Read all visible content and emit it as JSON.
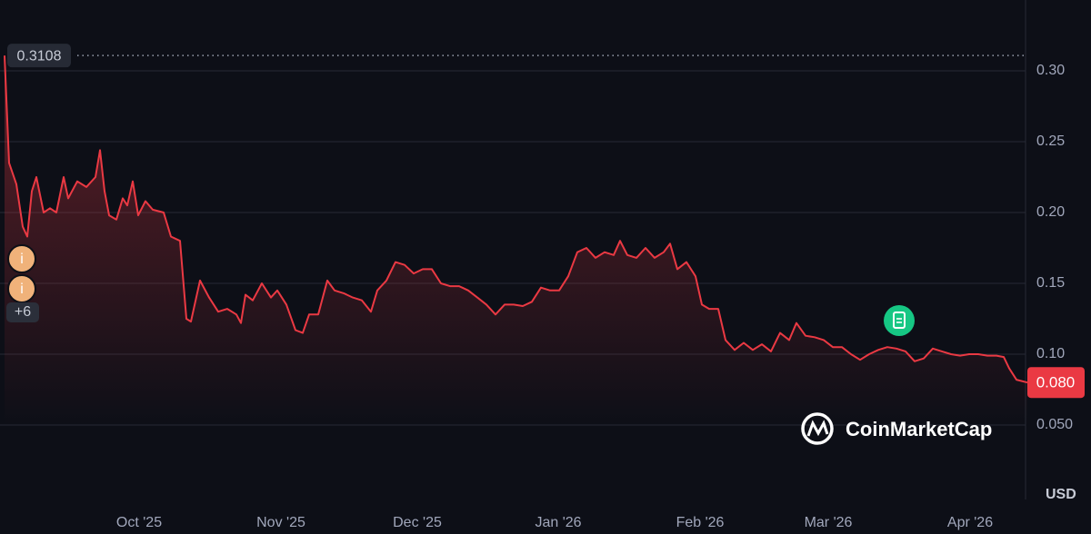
{
  "chart_data": {
    "type": "line",
    "color": "#ea3943",
    "x": [
      0,
      1,
      2.6,
      4,
      5,
      6,
      7,
      8.6,
      10,
      11.4,
      13,
      14,
      16,
      18,
      20,
      21,
      22,
      23,
      24.6,
      26,
      27,
      28.2,
      29.4,
      31,
      32.6,
      35,
      36.6,
      38.6,
      40,
      41,
      43,
      45,
      47,
      49,
      51,
      52,
      53,
      54.6,
      56.6,
      58.6,
      60,
      62,
      64,
      65.6,
      67,
      69,
      71,
      72.6,
      74.6,
      76.6,
      78.6,
      80.6,
      82,
      84,
      86,
      88,
      90,
      92,
      94,
      96,
      98,
      100,
      102,
      104,
      106,
      108,
      110,
      112,
      114,
      116,
      118,
      120,
      122,
      124,
      126,
      128,
      130,
      132,
      134,
      135.4,
      137,
      139,
      141,
      143,
      145,
      146.4,
      148,
      150,
      152,
      153.4,
      155,
      157,
      158.6,
      160.6,
      162.6,
      164.6,
      166.6,
      168.6,
      170.6,
      172.6,
      174.2,
      176.2,
      178.2,
      180.2,
      182.2,
      184.2,
      186.2,
      188.2,
      190.2,
      192.2,
      194.2,
      196.2,
      198.2,
      200.2,
      202.2,
      204.2,
      206.2,
      208.2,
      210.2,
      212.2,
      214.2,
      216.2,
      218.2,
      219.8,
      221,
      222.6,
      225
    ],
    "values": [
      0.3108,
      0.235,
      0.22,
      0.19,
      0.183,
      0.215,
      0.225,
      0.2,
      0.203,
      0.2,
      0.225,
      0.21,
      0.222,
      0.218,
      0.225,
      0.244,
      0.215,
      0.198,
      0.195,
      0.21,
      0.205,
      0.222,
      0.198,
      0.208,
      0.202,
      0.2,
      0.183,
      0.18,
      0.125,
      0.123,
      0.152,
      0.14,
      0.13,
      0.132,
      0.128,
      0.122,
      0.142,
      0.138,
      0.15,
      0.14,
      0.145,
      0.135,
      0.117,
      0.115,
      0.128,
      0.128,
      0.152,
      0.145,
      0.143,
      0.14,
      0.138,
      0.13,
      0.145,
      0.152,
      0.165,
      0.163,
      0.157,
      0.16,
      0.16,
      0.15,
      0.148,
      0.148,
      0.145,
      0.14,
      0.135,
      0.128,
      0.135,
      0.135,
      0.134,
      0.137,
      0.147,
      0.145,
      0.145,
      0.155,
      0.172,
      0.175,
      0.168,
      0.172,
      0.17,
      0.18,
      0.17,
      0.168,
      0.175,
      0.168,
      0.172,
      0.178,
      0.16,
      0.165,
      0.155,
      0.135,
      0.132,
      0.132,
      0.11,
      0.103,
      0.108,
      0.103,
      0.107,
      0.102,
      0.115,
      0.11,
      0.122,
      0.113,
      0.112,
      0.11,
      0.105,
      0.105,
      0.1,
      0.096,
      0.1,
      0.103,
      0.105,
      0.104,
      0.102,
      0.095,
      0.097,
      0.104,
      0.102,
      0.1,
      0.099,
      0.1,
      0.1,
      0.099,
      0.099,
      0.098,
      0.09,
      0.082,
      0.08
    ],
    "xlim": [
      0,
      225
    ],
    "xticks": [
      {
        "value": 29.6,
        "label": "Oct '25"
      },
      {
        "value": 60.8,
        "label": "Nov '25"
      },
      {
        "value": 90.8,
        "label": "Dec '25"
      },
      {
        "value": 121.8,
        "label": "Jan '26"
      },
      {
        "value": 153,
        "label": "Feb '26"
      },
      {
        "value": 181.2,
        "label": "Mar '26"
      },
      {
        "value": 212.4,
        "label": "Apr '26"
      }
    ],
    "ylim": [
      0.05,
      0.325
    ],
    "yticks": [
      {
        "value": 0.3,
        "label": "0.30"
      },
      {
        "value": 0.25,
        "label": "0.25"
      },
      {
        "value": 0.2,
        "label": "0.20"
      },
      {
        "value": 0.15,
        "label": "0.15"
      },
      {
        "value": 0.1,
        "label": "0.10"
      },
      {
        "value": 0.05,
        "label": "0.050"
      }
    ],
    "grid": true,
    "high": {
      "value": 0.3108,
      "label": "0.3108"
    },
    "current": {
      "value": 0.08,
      "label": "0.080"
    },
    "currency": "USD",
    "brand": "CoinMarketCap",
    "info_icons": [
      "i",
      "i"
    ],
    "more_events": "+6"
  }
}
